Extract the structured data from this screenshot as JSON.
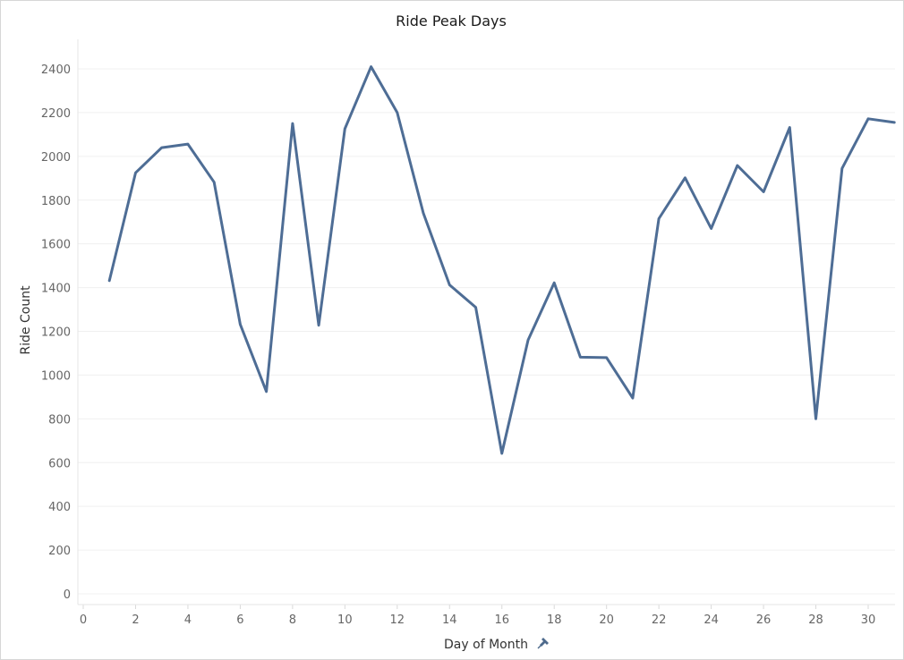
{
  "chart_data": {
    "type": "line",
    "title": "Ride Peak Days",
    "xlabel": "Day of Month",
    "ylabel": "Ride Count",
    "x": [
      1,
      2,
      3,
      4,
      5,
      6,
      7,
      8,
      9,
      10,
      11,
      12,
      13,
      14,
      15,
      16,
      17,
      18,
      19,
      20,
      21,
      22,
      23,
      24,
      25,
      26,
      27,
      28,
      29,
      30,
      31
    ],
    "series": [
      {
        "values": [
          1432,
          1925,
          2040,
          2056,
          1882,
          1232,
          925,
          2150,
          1228,
          2126,
          2410,
          2200,
          1740,
          1412,
          1310,
          642,
          1160,
          1422,
          1082,
          1080,
          895,
          1715,
          1902,
          1670,
          1958,
          1838,
          2132,
          800,
          1945,
          2172,
          2155
        ]
      }
    ],
    "xlim": [
      0,
      31
    ],
    "ylim": [
      -40,
      2540
    ],
    "x_ticks": [
      "0",
      "2",
      "4",
      "6",
      "8",
      "10",
      "12",
      "14",
      "16",
      "18",
      "20",
      "22",
      "24",
      "26",
      "28",
      "30"
    ],
    "y_ticks": [
      "0",
      "200",
      "400",
      "600",
      "800",
      "1000",
      "1200",
      "1400",
      "1600",
      "1800",
      "2000",
      "2200",
      "2400"
    ],
    "grid": true,
    "line_color": "#4e79a7",
    "pin_icon": "pin-icon"
  }
}
